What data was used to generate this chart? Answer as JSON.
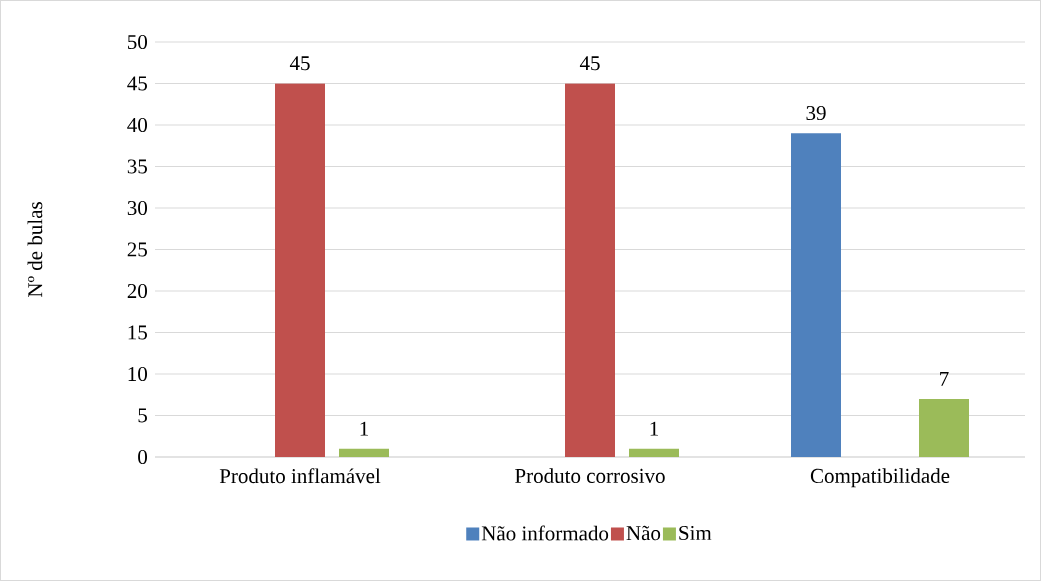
{
  "chart_data": {
    "type": "bar",
    "ylabel": "Nº de bulas",
    "categories": [
      "Produto inflamável",
      "Produto corrosivo",
      "Compatibilidade"
    ],
    "series": [
      {
        "name": "Não informado",
        "color": "#4f81bd",
        "values": [
          null,
          null,
          39
        ]
      },
      {
        "name": "Não",
        "color": "#c0504d",
        "values": [
          45,
          45,
          null
        ]
      },
      {
        "name": "Sim",
        "color": "#9bbb59",
        "values": [
          1,
          1,
          7
        ]
      }
    ],
    "ylim": [
      0,
      50
    ],
    "yticks": [
      0,
      5,
      10,
      15,
      20,
      25,
      30,
      35,
      40,
      45,
      50
    ],
    "grid": "y",
    "legend": "bottom",
    "data_labels": true
  }
}
